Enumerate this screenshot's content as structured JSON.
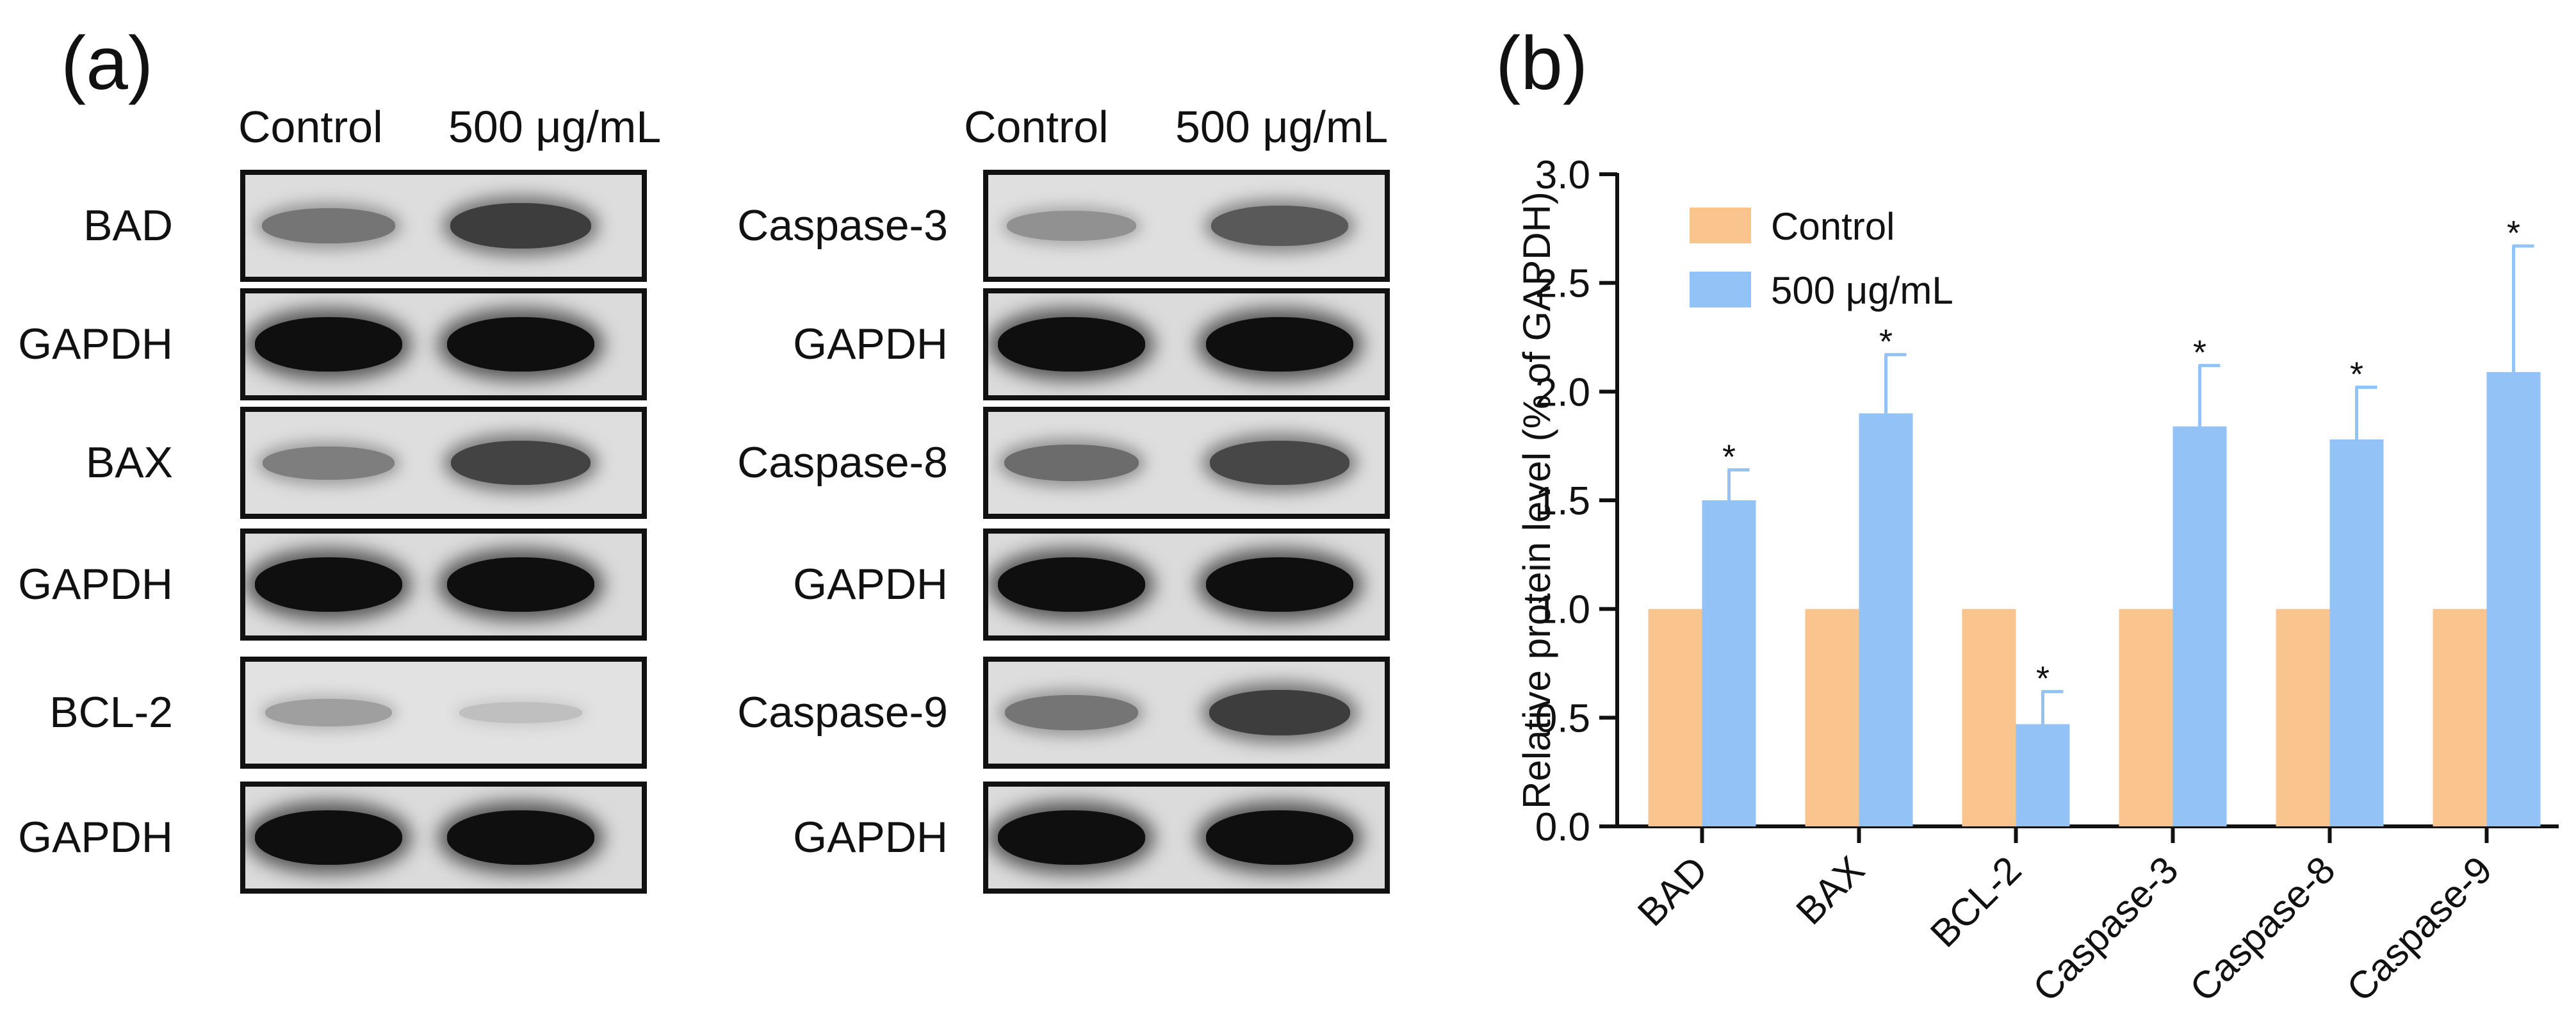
{
  "panels": {
    "a": "(a)",
    "b": "(b)"
  },
  "blot_left": {
    "headers": [
      "Control",
      "500 μg/mL"
    ],
    "rows": [
      {
        "label": "BAD",
        "control": 0.45,
        "treated": 0.75
      },
      {
        "label": "GAPDH",
        "control": 1.0,
        "treated": 1.0
      },
      {
        "label": "BAX",
        "control": 0.4,
        "treated": 0.72
      },
      {
        "label": "GAPDH",
        "control": 1.0,
        "treated": 1.0
      },
      {
        "label": "BCL-2",
        "control": 0.22,
        "treated": 0.05
      },
      {
        "label": "GAPDH",
        "control": 1.0,
        "treated": 1.0
      }
    ]
  },
  "blot_right": {
    "headers": [
      "Control",
      "500 μg/mL"
    ],
    "rows": [
      {
        "label": "Caspase-3",
        "control": 0.3,
        "treated": 0.6
      },
      {
        "label": "GAPDH",
        "control": 1.0,
        "treated": 1.0
      },
      {
        "label": "Caspase-8",
        "control": 0.5,
        "treated": 0.7
      },
      {
        "label": "GAPDH",
        "control": 1.0,
        "treated": 1.0
      },
      {
        "label": "Caspase-9",
        "control": 0.45,
        "treated": 0.75
      },
      {
        "label": "GAPDH",
        "control": 1.0,
        "treated": 1.0
      }
    ]
  },
  "chart_data": {
    "type": "bar",
    "ylabel": "Relative protein level (% of GAPDH)",
    "ylim": [
      0,
      3.0
    ],
    "yticks": [
      "0.0",
      "0.5",
      "1.0",
      "1.5",
      "2.0",
      "2.5",
      "3.0"
    ],
    "categories": [
      "BAD",
      "BAX",
      "BCL-2",
      "Caspase-3",
      "Caspase-8",
      "Caspase-9"
    ],
    "series": [
      {
        "name": "Control",
        "color": "#F9C48E",
        "values": [
          1.0,
          1.0,
          1.0,
          1.0,
          1.0,
          1.0
        ],
        "errors": [
          0,
          0,
          0,
          0,
          0,
          0
        ]
      },
      {
        "name": "500 μg/mL",
        "color": "#93C2F7",
        "values": [
          1.5,
          1.9,
          0.47,
          1.84,
          1.78,
          2.09
        ],
        "errors": [
          0.14,
          0.27,
          0.15,
          0.28,
          0.24,
          0.58
        ]
      }
    ],
    "significance": [
      "*",
      "*",
      "*",
      "*",
      "*",
      "*"
    ],
    "legend": "top-left",
    "grid": false
  }
}
